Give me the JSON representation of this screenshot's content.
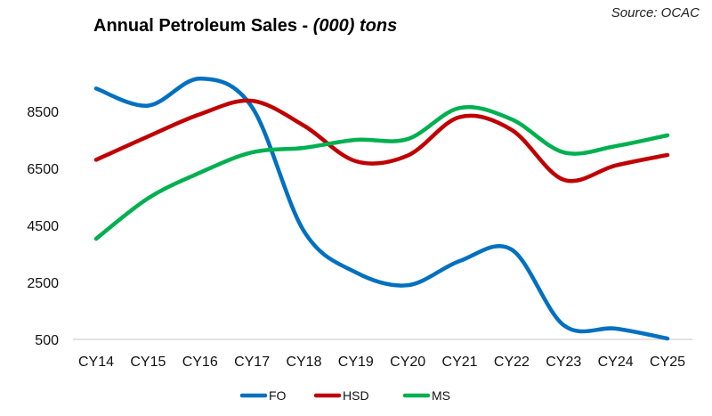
{
  "chart_data": {
    "type": "line",
    "title": "Annual Petroleum Sales - ",
    "title_italic": "(000) tons",
    "source": "Source: OCAC",
    "categories": [
      "CY14",
      "CY15",
      "CY16",
      "CY17",
      "CY18",
      "CY19",
      "CY20",
      "CY21",
      "CY22",
      "CY23",
      "CY24",
      "CY25"
    ],
    "ylim": [
      500,
      10000
    ],
    "yticks": [
      "500",
      "2500",
      "4500",
      "6500",
      "8500"
    ],
    "grid": false,
    "smooth": true,
    "legend_position": "bottom",
    "series": [
      {
        "name": "FO",
        "color": "#0070c0",
        "values": [
          9300,
          8700,
          9650,
          8650,
          4300,
          2850,
          2400,
          3250,
          3650,
          1000,
          880,
          530
        ]
      },
      {
        "name": "HSD",
        "color": "#c00000",
        "values": [
          6800,
          7620,
          8400,
          8870,
          8000,
          6750,
          6950,
          8300,
          7850,
          6100,
          6600,
          6970
        ]
      },
      {
        "name": "MS",
        "color": "#00b050",
        "values": [
          4030,
          5450,
          6350,
          7060,
          7220,
          7500,
          7530,
          8620,
          8220,
          7060,
          7280,
          7660
        ]
      }
    ]
  }
}
